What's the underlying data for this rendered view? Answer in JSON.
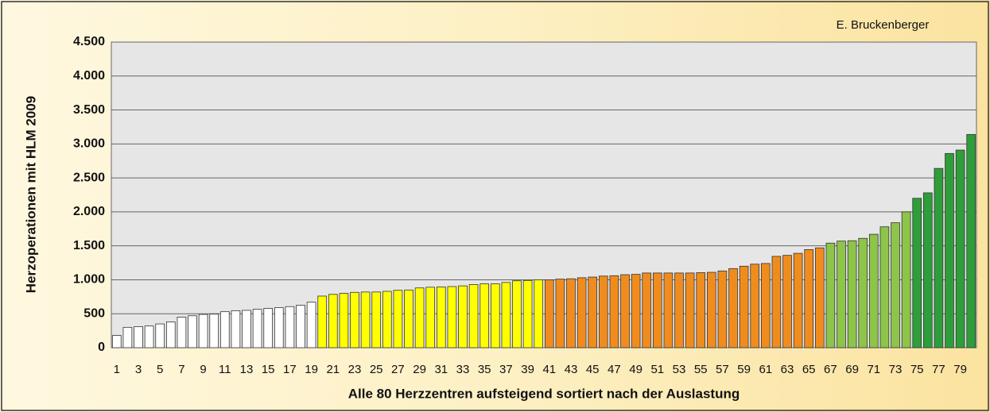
{
  "chart_data": {
    "type": "bar",
    "credit": "E. Bruckenberger",
    "y_label": "Herzoperationen mit HLM  2009",
    "x_label": "Alle 80 Herzzentren aufsteigend sortiert nach der Auslastung",
    "categories": [
      "1",
      null,
      "3",
      null,
      "5",
      null,
      "7",
      null,
      "9",
      null,
      "11",
      null,
      "13",
      null,
      "15",
      null,
      "17",
      null,
      "19",
      null,
      "21",
      null,
      "23",
      null,
      "25",
      null,
      "27",
      null,
      "29",
      null,
      "31",
      null,
      "33",
      null,
      "35",
      null,
      "37",
      null,
      "39",
      null,
      "41",
      null,
      "43",
      null,
      "45",
      null,
      "47",
      null,
      "49",
      null,
      "51",
      null,
      "53",
      null,
      "55",
      null,
      "57",
      null,
      "59",
      null,
      "61",
      null,
      "63",
      null,
      "65",
      null,
      "67",
      null,
      "69",
      null,
      "71",
      null,
      "73",
      null,
      "75",
      null,
      "77",
      null,
      "79",
      null
    ],
    "values": [
      180,
      300,
      310,
      320,
      350,
      380,
      450,
      470,
      490,
      495,
      530,
      545,
      550,
      565,
      580,
      590,
      605,
      625,
      670,
      760,
      785,
      800,
      815,
      820,
      820,
      830,
      845,
      850,
      880,
      890,
      895,
      900,
      910,
      930,
      940,
      940,
      960,
      985,
      990,
      1000,
      1000,
      1010,
      1015,
      1030,
      1040,
      1055,
      1060,
      1075,
      1080,
      1100,
      1100,
      1100,
      1100,
      1100,
      1105,
      1110,
      1130,
      1165,
      1200,
      1230,
      1240,
      1345,
      1360,
      1390,
      1445,
      1470,
      1540,
      1570,
      1575,
      1610,
      1670,
      1780,
      1840,
      2000,
      2200,
      2280,
      2640,
      2860,
      2910,
      3140
    ],
    "colors": [
      "#ffffff",
      "#ffffff",
      "#ffffff",
      "#ffffff",
      "#ffffff",
      "#ffffff",
      "#ffffff",
      "#ffffff",
      "#ffffff",
      "#ffffff",
      "#ffffff",
      "#ffffff",
      "#ffffff",
      "#ffffff",
      "#ffffff",
      "#ffffff",
      "#ffffff",
      "#ffffff",
      "#ffffff",
      "#ffff00",
      "#ffff00",
      "#ffff00",
      "#ffff00",
      "#ffff00",
      "#ffff00",
      "#ffff00",
      "#ffff00",
      "#ffff00",
      "#ffff00",
      "#ffff00",
      "#ffff00",
      "#ffff00",
      "#ffff00",
      "#ffff00",
      "#ffff00",
      "#ffff00",
      "#ffff00",
      "#ffff00",
      "#ffff00",
      "#ffff00",
      "#f08c1e",
      "#f08c1e",
      "#f08c1e",
      "#f08c1e",
      "#f08c1e",
      "#f08c1e",
      "#f08c1e",
      "#f08c1e",
      "#f08c1e",
      "#f08c1e",
      "#f08c1e",
      "#f08c1e",
      "#f08c1e",
      "#f08c1e",
      "#f08c1e",
      "#f08c1e",
      "#f08c1e",
      "#f08c1e",
      "#f08c1e",
      "#f08c1e",
      "#f08c1e",
      "#f08c1e",
      "#f08c1e",
      "#f08c1e",
      "#f08c1e",
      "#f08c1e",
      "#8dc44a",
      "#8dc44a",
      "#8dc44a",
      "#8dc44a",
      "#8dc44a",
      "#8dc44a",
      "#8dc44a",
      "#8dc44a",
      "#2e9e3a",
      "#2e9e3a",
      "#2e9e3a",
      "#2e9e3a",
      "#2e9e3a",
      "#2e9e3a"
    ],
    "ylim": [
      0,
      4500
    ],
    "yticks": [
      0,
      500,
      {
        "value": 1000,
        "label": "1.000"
      },
      {
        "value": 1500,
        "label": "1.500"
      },
      {
        "value": 2000,
        "label": "2.000"
      },
      {
        "value": 2500,
        "label": "2.500"
      },
      {
        "value": 3000,
        "label": "3.000"
      },
      {
        "value": 3500,
        "label": "3.500"
      },
      {
        "value": 4000,
        "label": "4.000"
      },
      {
        "value": 4500,
        "label": "4.500"
      }
    ],
    "grid": true
  }
}
